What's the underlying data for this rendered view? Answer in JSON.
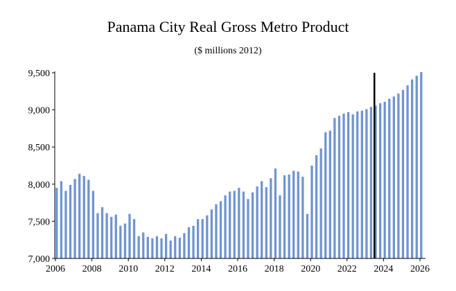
{
  "chart_data": {
    "type": "bar",
    "title": "Panama City Real Gross Metro Product",
    "subtitle": "($ millions 2012)",
    "xlabel": "",
    "ylabel": "",
    "ylim": [
      7000,
      9500
    ],
    "y_ticks": [
      7000,
      7500,
      8000,
      8500,
      9000,
      9500
    ],
    "y_tick_labels": [
      "7,000",
      "7,500",
      "8,000",
      "8,500",
      "9,000",
      "9,500"
    ],
    "xlim": [
      2006,
      2026.25
    ],
    "x_ticks": [
      2006,
      2008,
      2010,
      2012,
      2014,
      2016,
      2018,
      2020,
      2022,
      2024,
      2026
    ],
    "x_tick_labels": [
      "2006",
      "2008",
      "2010",
      "2012",
      "2014",
      "2016",
      "2018",
      "2020",
      "2022",
      "2024",
      "2026"
    ],
    "frequency": "quarterly",
    "start": 2006.0,
    "bar_color": "#7094d0",
    "forecast_marker_x": 2023.5,
    "forecast_marker_color": "#000000",
    "series": [
      {
        "name": "Real Gross Metro Product",
        "values": [
          7950,
          8040,
          7910,
          7990,
          8070,
          8140,
          8110,
          8060,
          7910,
          7610,
          7690,
          7610,
          7560,
          7590,
          7440,
          7470,
          7600,
          7530,
          7300,
          7350,
          7290,
          7270,
          7300,
          7270,
          7330,
          7240,
          7300,
          7280,
          7340,
          7420,
          7440,
          7530,
          7530,
          7580,
          7660,
          7730,
          7770,
          7850,
          7900,
          7910,
          7950,
          7900,
          7800,
          7890,
          7970,
          8040,
          7960,
          8080,
          8210,
          7850,
          8120,
          8130,
          8180,
          8170,
          8100,
          7600,
          8250,
          8390,
          8480,
          8700,
          8720,
          8890,
          8920,
          8950,
          8970,
          8940,
          8980,
          8990,
          9010,
          9040,
          9060,
          9090,
          9110,
          9150,
          9180,
          9220,
          9270,
          9330,
          9410,
          9460,
          9510
        ]
      }
    ]
  }
}
